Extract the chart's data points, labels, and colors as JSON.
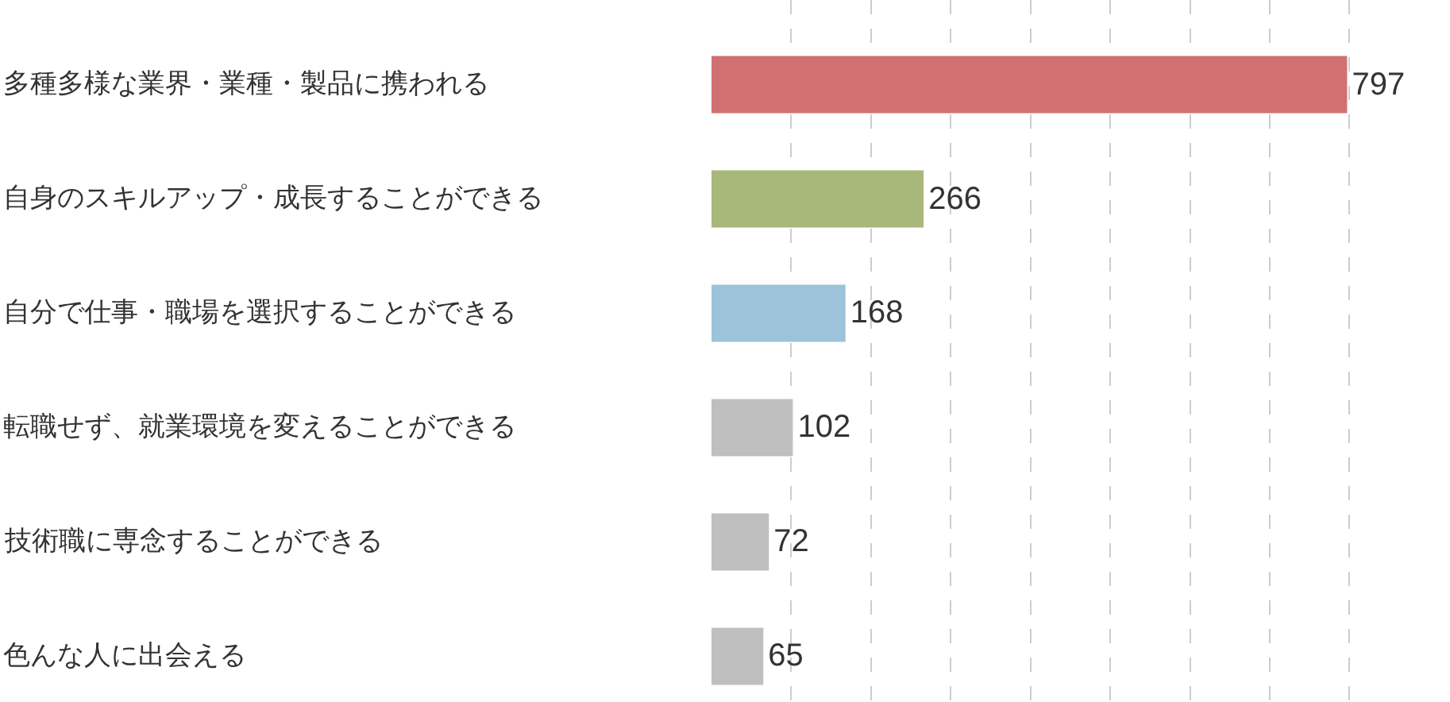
{
  "chart_data": {
    "type": "bar",
    "orientation": "horizontal",
    "categories": [
      "多種多様な業界・業種・製品に携われる",
      "自身のスキルアップ・成長することができる",
      "自分で仕事・職場を選択することができる",
      "転職せず、就業環境を変えることができる",
      "技術職に専念することができる",
      "色んな人に出会える"
    ],
    "values": [
      797,
      266,
      168,
      102,
      72,
      65
    ],
    "colors": [
      "#d07070",
      "#a8b87a",
      "#9cc3da",
      "#bfbfbf",
      "#bfbfbf",
      "#bfbfbf"
    ],
    "xlim": [
      0,
      926
    ],
    "xticks": [
      {
        "value": 100,
        "label": null
      },
      {
        "value": 200,
        "label": null
      },
      {
        "value": 300,
        "label": null
      },
      {
        "value": 400,
        "label": null
      },
      {
        "value": 500,
        "label": null
      },
      {
        "value": 600,
        "label": null
      },
      {
        "value": 700,
        "label": null
      },
      {
        "value": 800,
        "label": null
      }
    ],
    "grid": "x",
    "tick_labels": "y",
    "data_labels": true
  }
}
